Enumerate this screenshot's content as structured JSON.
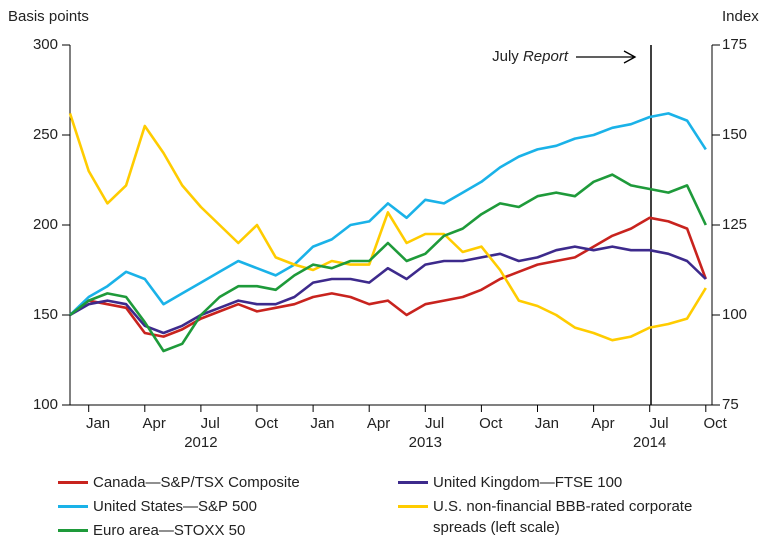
{
  "chart_data": {
    "type": "line",
    "y_label": "Basis points",
    "y2_label": "Index",
    "annotation": {
      "text": "July",
      "emphasis": "Report"
    },
    "x": [
      "2011-12",
      "2012-01",
      "2012-02",
      "2012-03",
      "2012-04",
      "2012-05",
      "2012-06",
      "2012-07",
      "2012-08",
      "2012-09",
      "2012-10",
      "2012-11",
      "2012-12",
      "2013-01",
      "2013-02",
      "2013-03",
      "2013-04",
      "2013-05",
      "2013-06",
      "2013-07",
      "2013-08",
      "2013-09",
      "2013-10",
      "2013-11",
      "2013-12",
      "2014-01",
      "2014-02",
      "2014-03",
      "2014-04",
      "2014-05",
      "2014-06",
      "2014-07",
      "2014-08",
      "2014-09",
      "2014-10"
    ],
    "xticks": [
      {
        "value": "2012-01",
        "label": "Jan"
      },
      {
        "value": "2012-04",
        "label": "Apr"
      },
      {
        "value": "2012-07",
        "label": "Jul"
      },
      {
        "value": "2012-10",
        "label": "Oct"
      },
      {
        "value": "2013-01",
        "label": "Jan"
      },
      {
        "value": "2013-04",
        "label": "Apr"
      },
      {
        "value": "2013-07",
        "label": "Jul"
      },
      {
        "value": "2013-10",
        "label": "Oct"
      },
      {
        "value": "2014-01",
        "label": "Jan"
      },
      {
        "value": "2014-04",
        "label": "Apr"
      },
      {
        "value": "2014-07",
        "label": "Jul"
      },
      {
        "value": "2014-10",
        "label": "Oct"
      }
    ],
    "year_labels": [
      {
        "value": "2012-07",
        "label": "2012"
      },
      {
        "value": "2013-07",
        "label": "2013"
      },
      {
        "value": "2014-07",
        "label": "2014"
      }
    ],
    "ylim": [
      100,
      300
    ],
    "yticks": [
      100,
      150,
      200,
      250,
      300
    ],
    "y2lim": [
      75,
      175
    ],
    "y2ticks": [
      75,
      100,
      125,
      150,
      175
    ],
    "series": [
      {
        "name": "Canada—S&P/TSX Composite",
        "color": "#c8231e",
        "axis": "y2",
        "values": [
          100,
          104,
          103,
          102,
          95,
          94,
          96,
          99,
          101,
          103,
          101,
          102,
          103,
          105,
          106,
          105,
          103,
          104,
          100,
          103,
          104,
          105,
          107,
          110,
          112,
          114,
          115,
          116,
          119,
          122,
          124,
          127,
          126,
          124,
          110
        ]
      },
      {
        "name": "United Kingdom—FTSE 100",
        "color": "#3d2a8c",
        "axis": "y2",
        "values": [
          100,
          103,
          104,
          103,
          97,
          95,
          97,
          100,
          102,
          104,
          103,
          103,
          105,
          109,
          110,
          110,
          109,
          113,
          110,
          114,
          115,
          115,
          116,
          117,
          115,
          116,
          118,
          119,
          118,
          119,
          118,
          118,
          117,
          115,
          110
        ]
      },
      {
        "name": "United States—S&P 500",
        "color": "#1ab2e8",
        "axis": "y2",
        "values": [
          100,
          105,
          108,
          112,
          110,
          103,
          106,
          109,
          112,
          115,
          113,
          111,
          114,
          119,
          121,
          125,
          126,
          131,
          127,
          132,
          131,
          134,
          137,
          141,
          144,
          146,
          147,
          149,
          150,
          152,
          153,
          155,
          156,
          154,
          146
        ]
      },
      {
        "name": "U.S. non-financial BBB-rated corporate spreads (left scale)",
        "color": "#ffcc00",
        "axis": "y",
        "values": [
          262,
          230,
          212,
          222,
          255,
          240,
          222,
          210,
          200,
          190,
          200,
          182,
          178,
          175,
          180,
          178,
          178,
          207,
          190,
          195,
          195,
          185,
          188,
          175,
          158,
          155,
          150,
          143,
          140,
          136,
          138,
          143,
          145,
          148,
          165
        ]
      },
      {
        "name": "Euro area—STOXX 50",
        "color": "#1e9a3a",
        "axis": "y2",
        "values": [
          100,
          104,
          106,
          105,
          98,
          90,
          92,
          100,
          105,
          108,
          108,
          107,
          111,
          114,
          113,
          115,
          115,
          120,
          115,
          117,
          122,
          124,
          128,
          131,
          130,
          133,
          134,
          133,
          137,
          139,
          136,
          135,
          134,
          136,
          125
        ]
      }
    ]
  }
}
